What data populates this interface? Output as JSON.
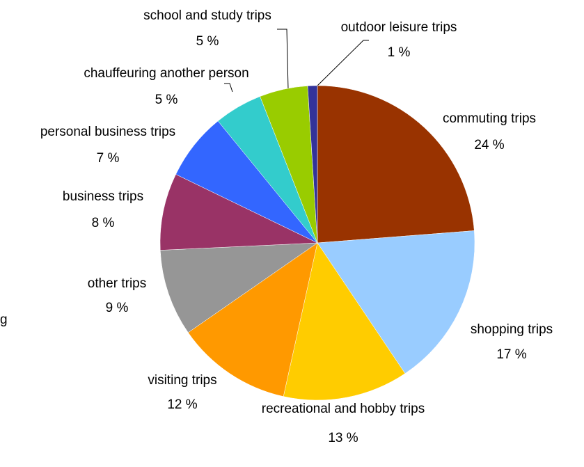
{
  "chart_data": {
    "type": "pie",
    "categories": [
      "commuting trips",
      "shopping trips",
      "recreational and hobby trips",
      "visiting trips",
      "other trips",
      "business trips",
      "personal business trips",
      "chauffeuring another person",
      "school and study trips",
      "outdoor leisure trips"
    ],
    "values": [
      24,
      17,
      13,
      12,
      9,
      8,
      7,
      5,
      5,
      1
    ],
    "value_labels": [
      "24 %",
      "17 %",
      "13 %",
      "12 %",
      "9 %",
      "8 %",
      "7 %",
      "5 %",
      "5 %",
      "1 %"
    ],
    "colors": [
      "#993300",
      "#99ccff",
      "#ffcc00",
      "#ff9900",
      "#969696",
      "#993366",
      "#3366ff",
      "#33cccc",
      "#99cc00",
      "#333399"
    ],
    "annotations": [
      "g"
    ]
  }
}
